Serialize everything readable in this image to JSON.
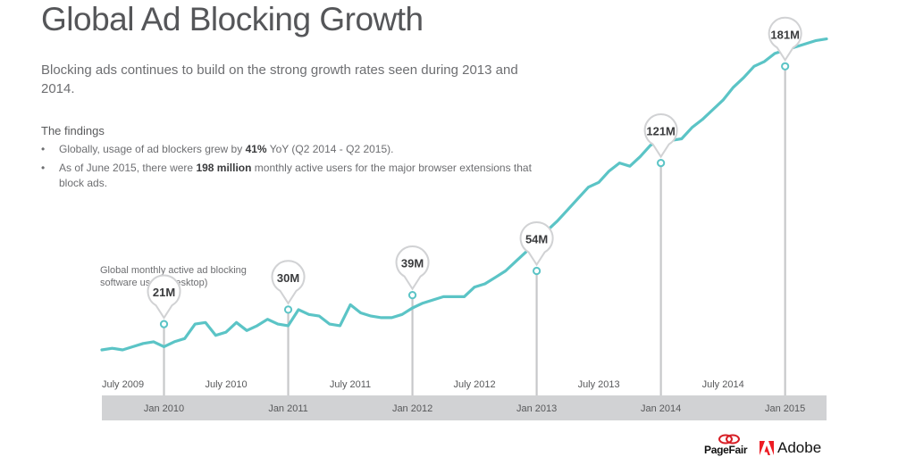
{
  "header": {
    "title": "Global Ad Blocking Growth",
    "subtitle": "Blocking ads continues to build on the strong growth rates seen during 2013 and 2014."
  },
  "findings": {
    "heading": "The findings",
    "items": [
      {
        "pre": "Globally, usage of ad blockers grew by ",
        "bold": "41%",
        "post": " YoY (Q2 2014 - Q2 2015)."
      },
      {
        "pre": "As of June 2015, there were ",
        "bold": "198 million",
        "post": " monthly active users for the major browser extensions that block ads."
      }
    ]
  },
  "chart_data": {
    "type": "line",
    "ylabel": "Global monthly active ad blocking software users (desktop)",
    "line_color": "#5bc4c6",
    "band_color": "#d1d2d4",
    "ylim": [
      0,
      200
    ],
    "x_start": "2009-07",
    "y_values": [
      5,
      6,
      5,
      7,
      9,
      10,
      7,
      10,
      12,
      21,
      22,
      14,
      16,
      22,
      17,
      20,
      24,
      21,
      20,
      30,
      27,
      26,
      21,
      20,
      33,
      28,
      26,
      25,
      25,
      27,
      31,
      34,
      36,
      38,
      38,
      38,
      44,
      46,
      50,
      54,
      60,
      66,
      71,
      79,
      85,
      92,
      99,
      106,
      109,
      116,
      121,
      119,
      125,
      132,
      135,
      135,
      136,
      143,
      148,
      154,
      160,
      168,
      174,
      181,
      184,
      189,
      191,
      193,
      195,
      197,
      198
    ],
    "annotations": [
      {
        "x": "2010-01",
        "label": "21M",
        "y": 21
      },
      {
        "x": "2011-01",
        "label": "30M",
        "y": 30
      },
      {
        "x": "2012-01",
        "label": "39M",
        "y": 39
      },
      {
        "x": "2013-01",
        "label": "54M",
        "y": 54
      },
      {
        "x": "2014-01",
        "label": "121M",
        "y": 121
      },
      {
        "x": "2015-01",
        "label": "181M",
        "y": 181
      }
    ],
    "top_tick_labels": [
      "July 2009",
      "July 2010",
      "July 2011",
      "July 2012",
      "July 2013",
      "July 2014"
    ],
    "bottom_tick_labels": [
      "Jan 2010",
      "Jan 2011",
      "Jan 2012",
      "Jan 2013",
      "Jan 2014",
      "Jan 2015"
    ]
  },
  "footer": {
    "pagefair_logo": "PageFair",
    "adobe_logo": "Adobe",
    "adobe_color": "#ed1c24",
    "pagefair_color": "#d71f26"
  }
}
